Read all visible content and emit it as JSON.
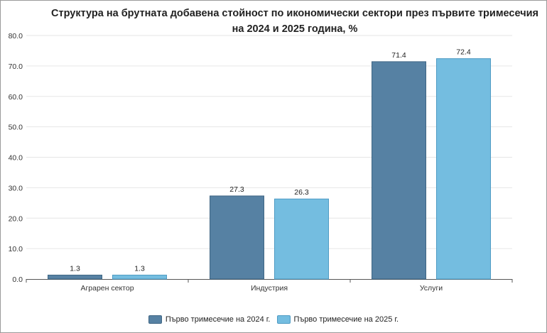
{
  "chart_data": {
    "type": "bar",
    "title": "Структура на брутната добавена стойност по икономически сектори през първите тримесечия на 2024 и 2025 година, %",
    "categories": [
      "Аграрен сектор",
      "Индустрия",
      "Услуги"
    ],
    "series": [
      {
        "name": "Първо тримесечие на 2024 г.",
        "values": [
          1.3,
          27.3,
          71.4
        ],
        "color": "#5681a3"
      },
      {
        "name": "Първо тримесечие на 2025 г.",
        "values": [
          1.3,
          26.3,
          72.4
        ],
        "color": "#74bde0"
      }
    ],
    "ylim": [
      0,
      80
    ],
    "yticks": [
      "0.0",
      "10.0",
      "20.0",
      "30.0",
      "40.0",
      "50.0",
      "60.0",
      "70.0",
      "80.0"
    ],
    "grid": true,
    "legend": "bottom"
  }
}
